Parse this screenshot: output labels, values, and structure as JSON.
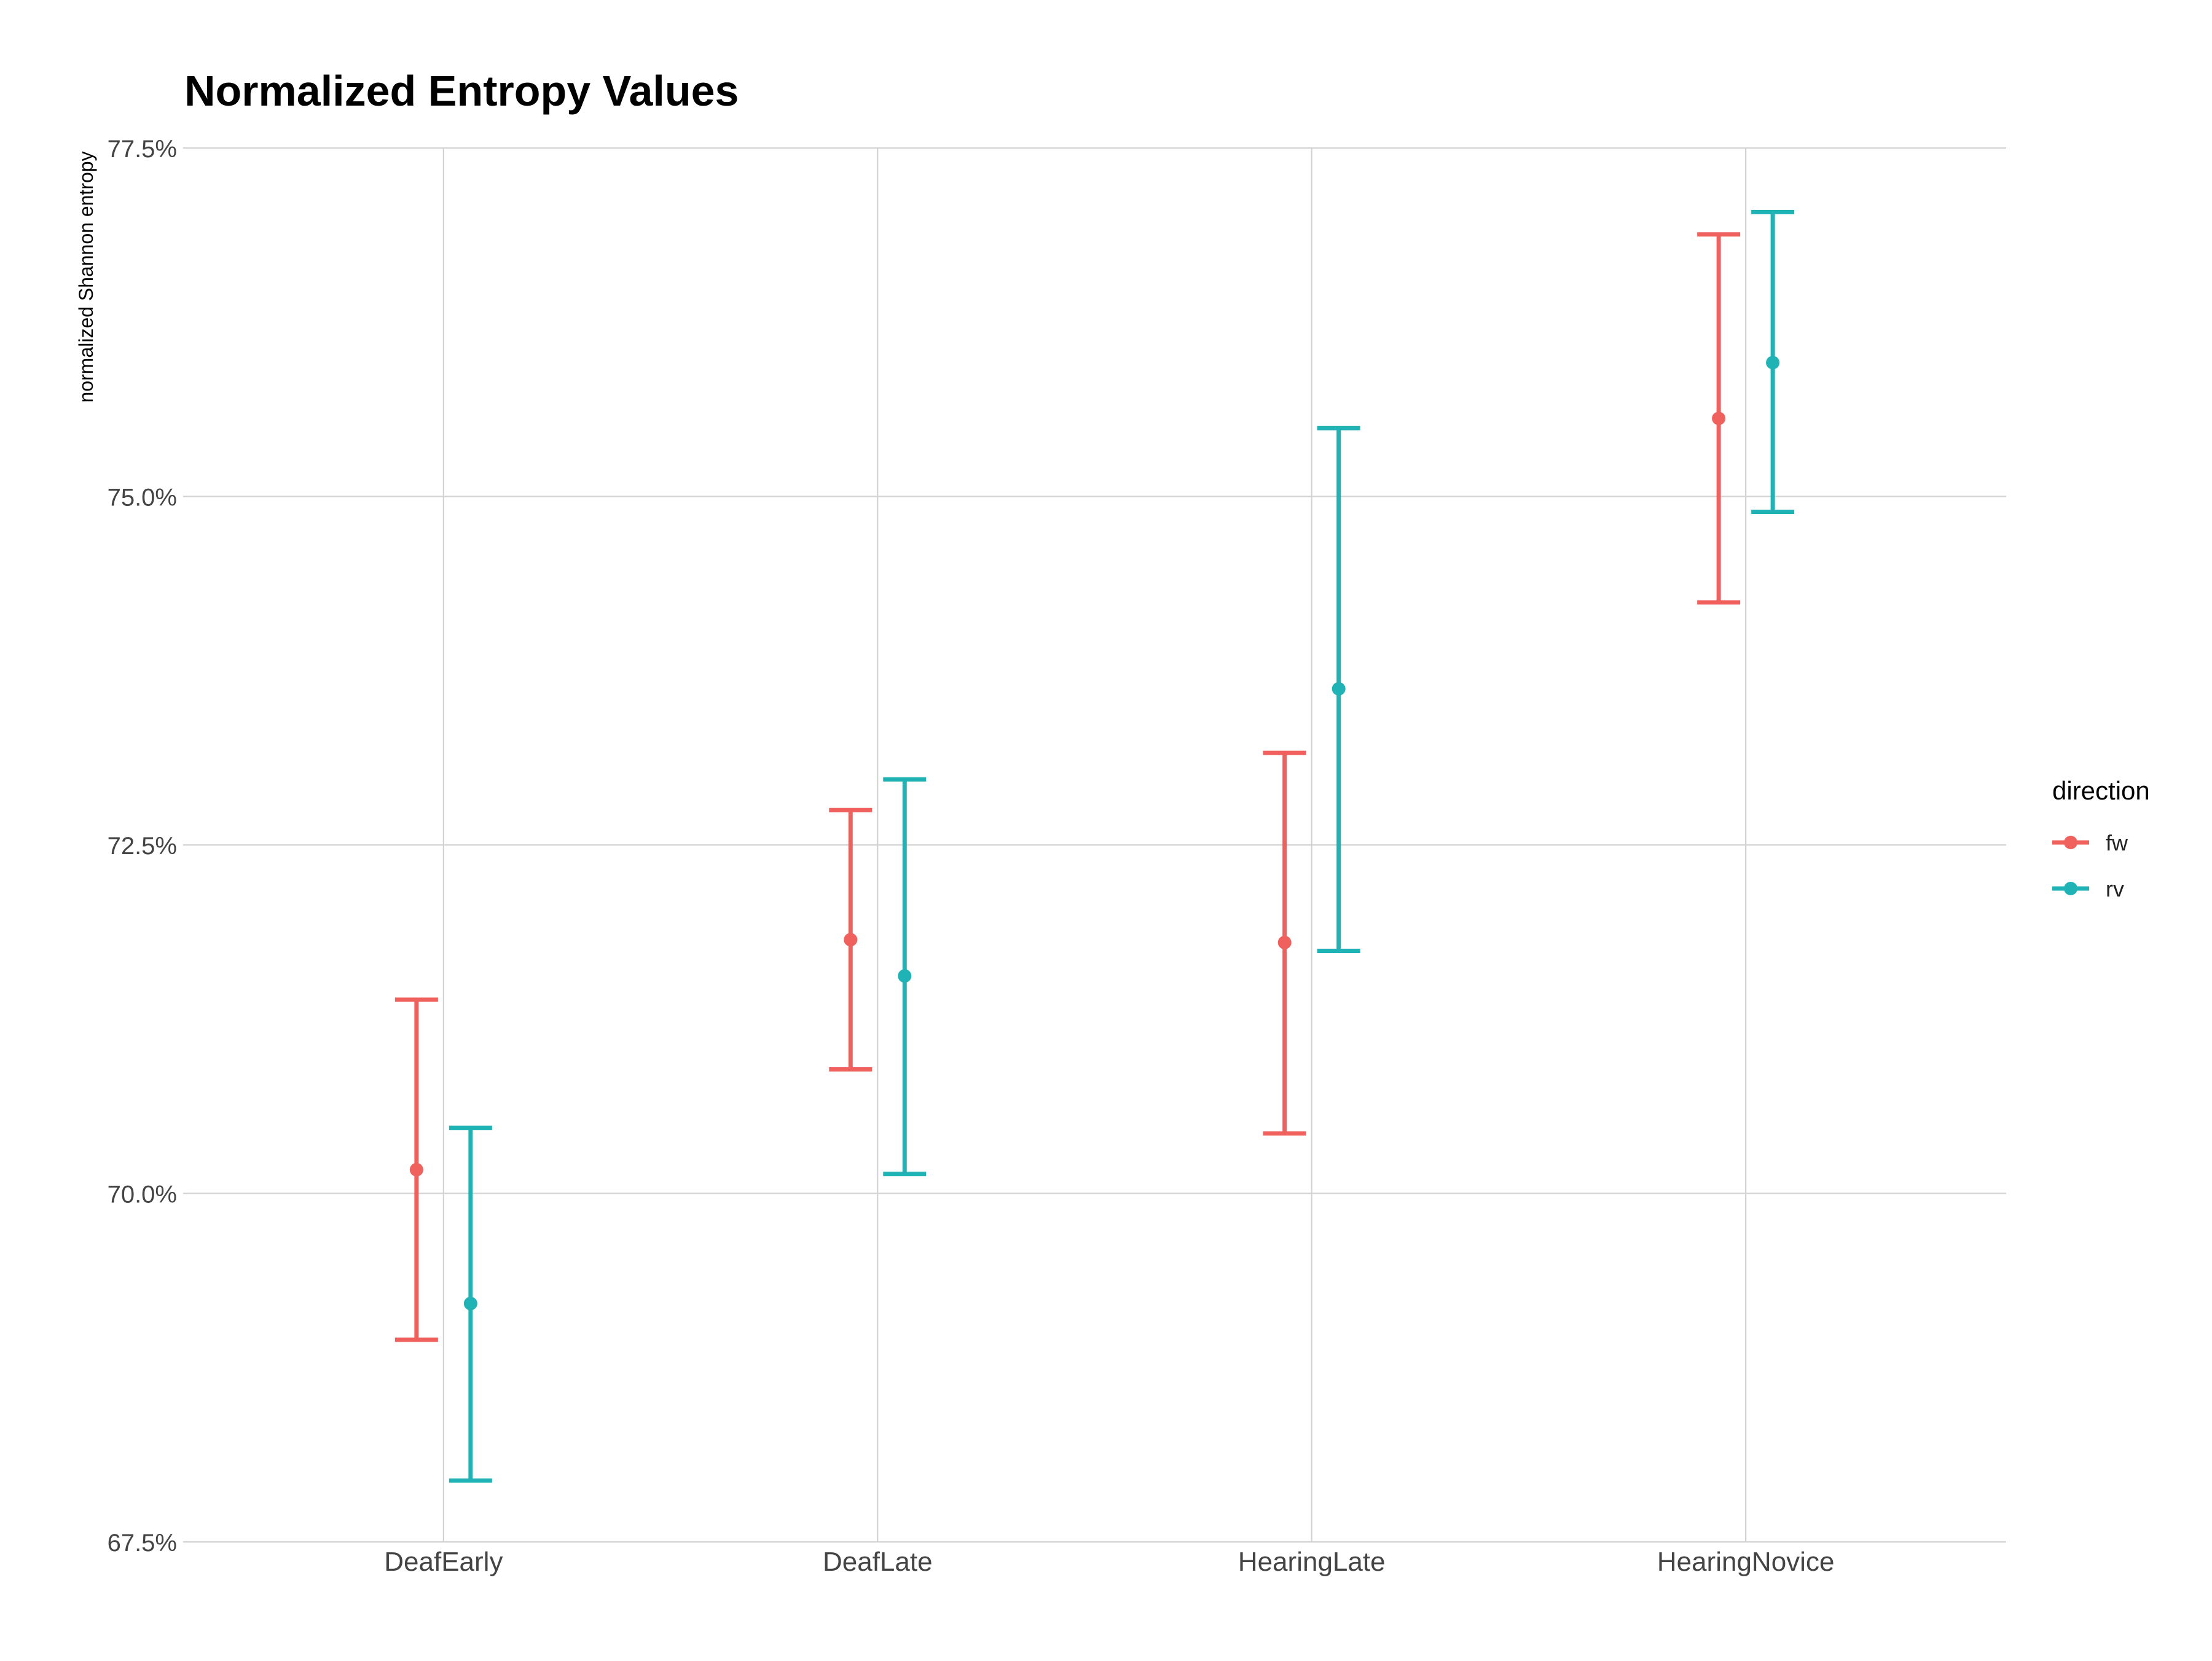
{
  "chart_data": {
    "type": "errorbar",
    "title": "Normalized Entropy Values",
    "xlabel": "",
    "ylabel": "normalized Shannon entropy",
    "categories": [
      "DeafEarly",
      "DeafLate",
      "HearingLate",
      "HearingNovice"
    ],
    "ylim": [
      67.5,
      77.5
    ],
    "y_ticks": [
      67.5,
      70.0,
      72.5,
      75.0,
      77.5
    ],
    "y_tick_labels": [
      "67.5%",
      "70.0%",
      "72.5%",
      "75.0%",
      "77.5%"
    ],
    "grid": true,
    "legend": {
      "title": "direction",
      "position": "right"
    },
    "series": [
      {
        "name": "fw",
        "color": "#F0615E",
        "points": [
          {
            "category": "DeafEarly",
            "y": 70.17,
            "ymin": 68.95,
            "ymax": 71.39
          },
          {
            "category": "DeafLate",
            "y": 71.82,
            "ymin": 70.89,
            "ymax": 72.75
          },
          {
            "category": "HearingLate",
            "y": 71.8,
            "ymin": 70.43,
            "ymax": 73.16
          },
          {
            "category": "HearingNovice",
            "y": 75.56,
            "ymin": 74.24,
            "ymax": 76.88
          }
        ]
      },
      {
        "name": "rv",
        "color": "#1FB3B6",
        "points": [
          {
            "category": "DeafEarly",
            "y": 69.21,
            "ymin": 67.94,
            "ymax": 70.47
          },
          {
            "category": "DeafLate",
            "y": 71.56,
            "ymin": 70.14,
            "ymax": 72.97
          },
          {
            "category": "HearingLate",
            "y": 73.62,
            "ymin": 71.74,
            "ymax": 75.49
          },
          {
            "category": "HearingNovice",
            "y": 75.96,
            "ymin": 74.89,
            "ymax": 77.04
          }
        ]
      }
    ]
  }
}
